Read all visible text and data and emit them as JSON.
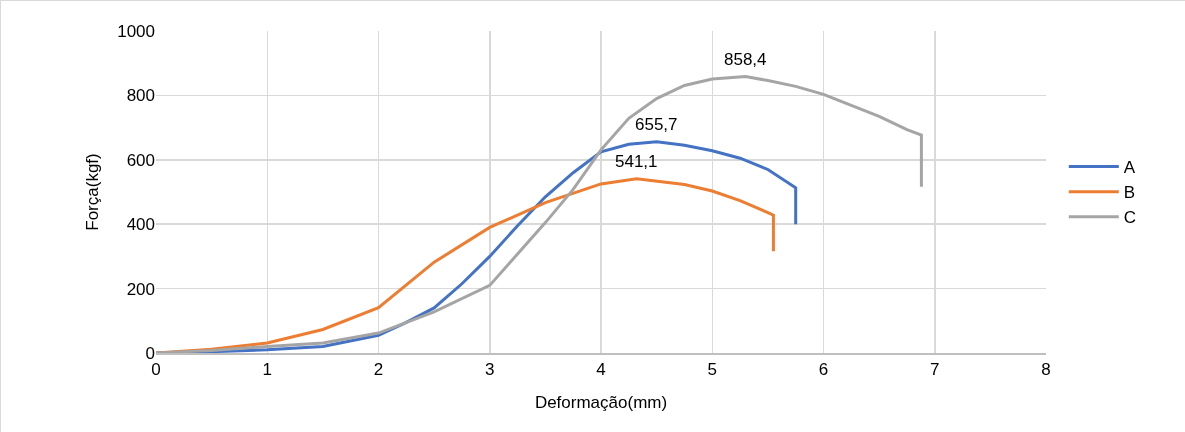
{
  "chart_data": {
    "type": "line",
    "xlabel": "Deformação(mm)",
    "ylabel": "Força(kgf)",
    "xlim": [
      0,
      8
    ],
    "xticks": [
      0,
      1,
      2,
      3,
      4,
      5,
      6,
      7,
      8
    ],
    "ylim": [
      0,
      1000
    ],
    "yticks": [
      0,
      200,
      400,
      600,
      800,
      1000
    ],
    "grid": true,
    "legend": "right",
    "marker": "none",
    "line_style": "solid",
    "series": [
      {
        "name": "A",
        "color": "#4472c4",
        "x": [
          0,
          0.5,
          1,
          1.5,
          2,
          2.25,
          2.5,
          2.75,
          3,
          3.25,
          3.5,
          3.75,
          4,
          4.25,
          4.5,
          4.75,
          5,
          5.25,
          5.5,
          5.75,
          5.75
        ],
        "values": [
          0,
          4,
          10,
          20,
          55,
          95,
          140,
          215,
          300,
          395,
          485,
          560,
          625,
          648,
          655.7,
          645,
          628,
          605,
          570,
          513,
          400
        ]
      },
      {
        "name": "B",
        "color": "#ed7d31",
        "x": [
          0,
          0.5,
          1,
          1.5,
          2,
          2.5,
          3,
          3.5,
          4,
          4.32,
          4.75,
          5,
          5.25,
          5.5,
          5.55,
          5.55
        ],
        "values": [
          0,
          12,
          31,
          73,
          141,
          282,
          390,
          467,
          525,
          541.1,
          523,
          503,
          473,
          436,
          428,
          316
        ]
      },
      {
        "name": "C",
        "color": "#a5a5a5",
        "x": [
          0,
          0.5,
          1,
          1.5,
          2,
          2.5,
          3,
          3.5,
          3.75,
          4,
          4.25,
          4.5,
          4.75,
          5,
          5.3,
          5.5,
          5.75,
          6,
          6.25,
          6.5,
          6.75,
          6.88,
          6.88
        ],
        "values": [
          0,
          8,
          20,
          31,
          62,
          128,
          210,
          405,
          508,
          631,
          729,
          790,
          831,
          851,
          858.4,
          846,
          828,
          803,
          769,
          735,
          694,
          677,
          516
        ]
      }
    ],
    "annotations": [
      {
        "text": "858,4",
        "x": 5.3,
        "y": 858.4
      },
      {
        "text": "655,7",
        "x": 4.5,
        "y": 655.7
      },
      {
        "text": "541,1",
        "x": 4.32,
        "y": 541.1
      }
    ]
  }
}
